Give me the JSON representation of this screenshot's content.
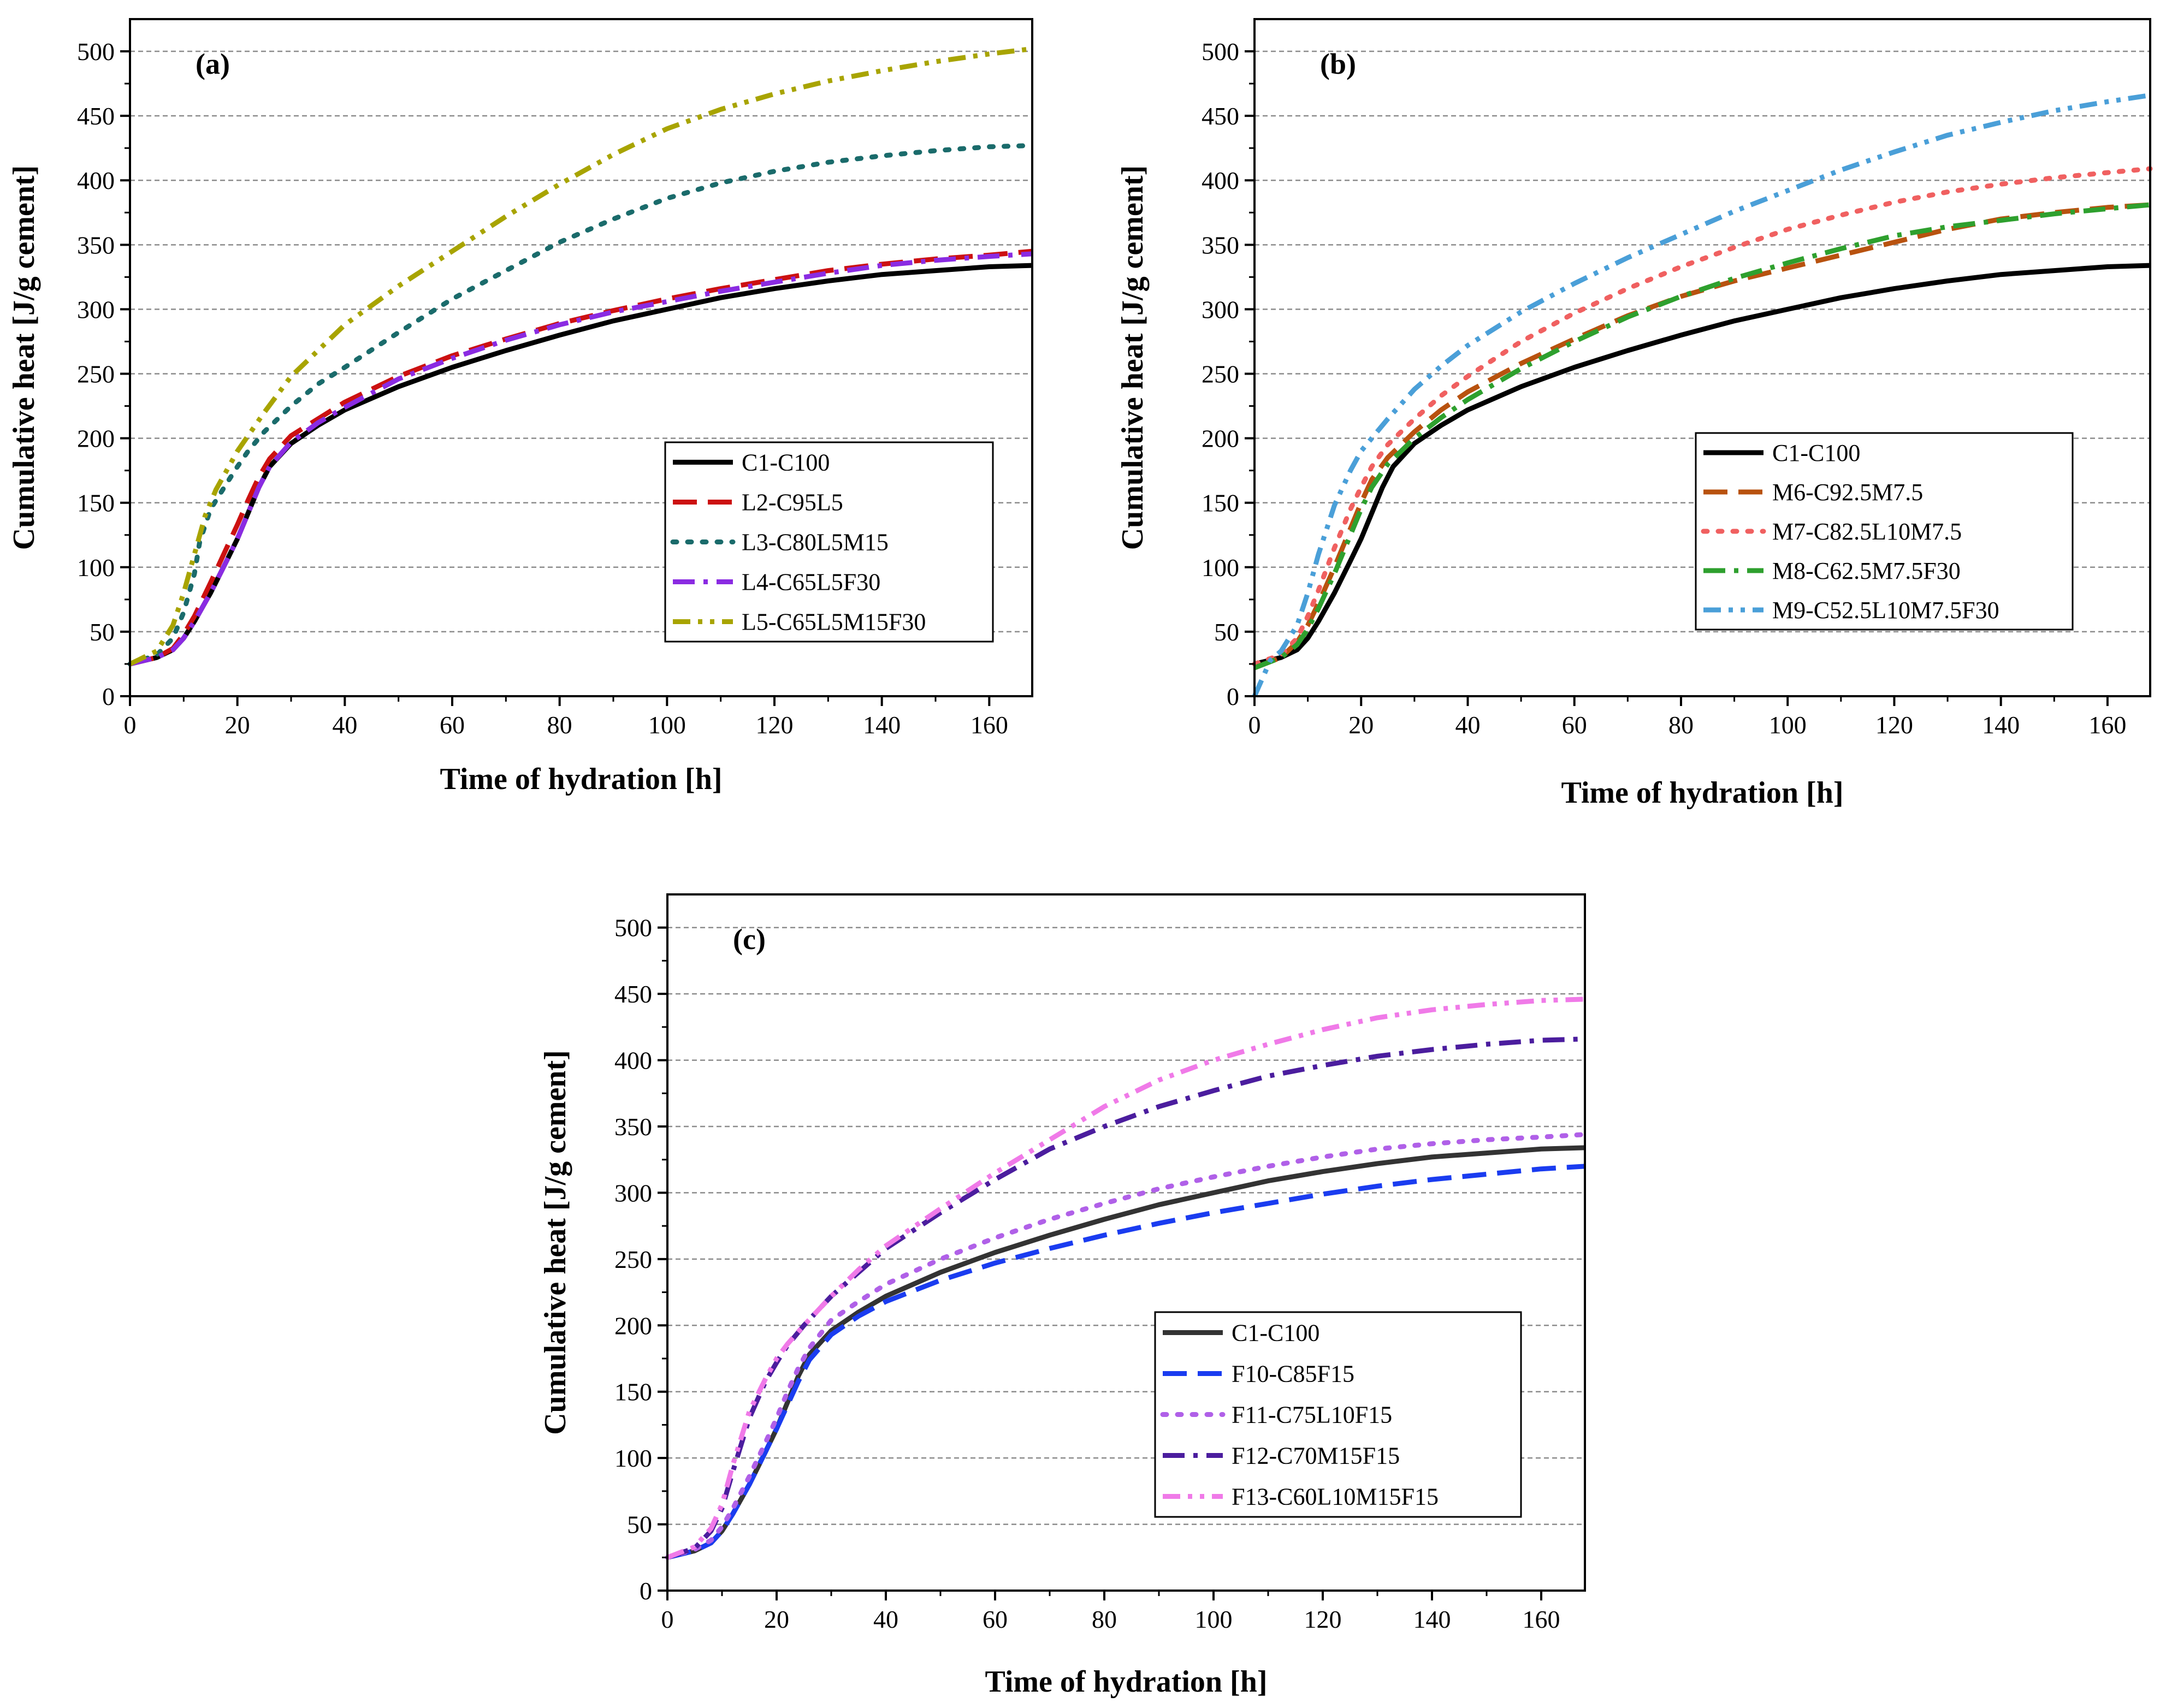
{
  "chart_data": [
    {
      "type": "line",
      "panel_label": "(a)",
      "xlabel": "Time of hydration [h]",
      "ylabel": "Cumulative heat [J/g cement]",
      "xlim": [
        0,
        168
      ],
      "ylim": [
        0,
        525
      ],
      "xticks": [
        0,
        20,
        40,
        60,
        80,
        100,
        120,
        140,
        160
      ],
      "yticks": [
        0,
        50,
        100,
        150,
        200,
        250,
        300,
        350,
        400,
        450,
        500
      ],
      "grid": "horizontal-dashed",
      "legend_position": "lower-right",
      "series": [
        {
          "name": "C1-C100",
          "color": "#000000",
          "dash": "solid",
          "x": [
            0,
            5,
            8,
            10,
            12,
            15,
            18,
            20,
            22,
            24,
            26,
            30,
            35,
            40,
            50,
            60,
            70,
            80,
            90,
            100,
            110,
            120,
            130,
            140,
            150,
            160,
            168
          ],
          "y": [
            25,
            30,
            36,
            45,
            58,
            80,
            105,
            122,
            142,
            162,
            178,
            196,
            210,
            222,
            240,
            255,
            268,
            280,
            291,
            300,
            309,
            316,
            322,
            327,
            330,
            333,
            334
          ]
        },
        {
          "name": "L2-C95L5",
          "color": "#cc1111",
          "dash": "dash",
          "x": [
            0,
            5,
            8,
            10,
            12,
            15,
            18,
            20,
            22,
            24,
            26,
            30,
            35,
            40,
            50,
            60,
            70,
            80,
            90,
            100,
            110,
            120,
            130,
            140,
            150,
            160,
            168
          ],
          "y": [
            25,
            30,
            37,
            48,
            62,
            88,
            115,
            133,
            152,
            170,
            184,
            202,
            215,
            228,
            248,
            264,
            277,
            289,
            299,
            308,
            316,
            323,
            330,
            335,
            339,
            342,
            345
          ]
        },
        {
          "name": "L3-C80L5M15",
          "color": "#1a6b6b",
          "dash": "dot",
          "x": [
            0,
            5,
            8,
            10,
            12,
            13,
            15,
            18,
            20,
            22,
            25,
            30,
            35,
            40,
            50,
            60,
            70,
            80,
            90,
            100,
            110,
            120,
            130,
            140,
            150,
            160,
            168
          ],
          "y": [
            25,
            32,
            45,
            65,
            95,
            120,
            145,
            165,
            178,
            190,
            205,
            225,
            242,
            255,
            282,
            308,
            330,
            352,
            370,
            386,
            398,
            407,
            414,
            419,
            423,
            426,
            427
          ]
        },
        {
          "name": "L4-C65L5F30",
          "color": "#8a2be2",
          "dash": "dashdot",
          "x": [
            0,
            5,
            8,
            10,
            12,
            15,
            18,
            20,
            22,
            24,
            26,
            30,
            35,
            40,
            50,
            60,
            70,
            80,
            90,
            100,
            110,
            120,
            130,
            140,
            150,
            160,
            168
          ],
          "y": [
            25,
            30,
            36,
            45,
            58,
            80,
            105,
            122,
            142,
            162,
            178,
            197,
            212,
            224,
            246,
            262,
            276,
            288,
            298,
            306,
            314,
            321,
            328,
            334,
            338,
            341,
            343
          ]
        },
        {
          "name": "L5-C65L5M15F30",
          "color": "#a8a400",
          "dash": "dashdotdot",
          "x": [
            0,
            5,
            8,
            10,
            12,
            14,
            16,
            18,
            20,
            25,
            30,
            35,
            40,
            50,
            60,
            70,
            80,
            90,
            100,
            110,
            120,
            130,
            140,
            150,
            160,
            168
          ],
          "y": [
            25,
            35,
            55,
            80,
            110,
            140,
            160,
            175,
            190,
            220,
            248,
            268,
            288,
            318,
            345,
            372,
            397,
            420,
            440,
            455,
            467,
            477,
            485,
            492,
            498,
            502
          ]
        }
      ]
    },
    {
      "type": "line",
      "panel_label": "(b)",
      "xlabel": "Time of hydration [h]",
      "ylabel": "Cumulative heat [J/g cement]",
      "xlim": [
        0,
        168
      ],
      "ylim": [
        0,
        525
      ],
      "xticks": [
        0,
        20,
        40,
        60,
        80,
        100,
        120,
        140,
        160
      ],
      "yticks": [
        0,
        50,
        100,
        150,
        200,
        250,
        300,
        350,
        400,
        450,
        500
      ],
      "grid": "horizontal-dashed",
      "legend_position": "center-right",
      "series": [
        {
          "name": "C1-C100",
          "color": "#000000",
          "dash": "solid",
          "x": [
            0,
            5,
            8,
            10,
            12,
            15,
            18,
            20,
            22,
            24,
            26,
            30,
            35,
            40,
            50,
            60,
            70,
            80,
            90,
            100,
            110,
            120,
            130,
            140,
            150,
            160,
            168
          ],
          "y": [
            25,
            30,
            36,
            45,
            58,
            80,
            105,
            122,
            142,
            162,
            178,
            196,
            210,
            222,
            240,
            255,
            268,
            280,
            291,
            300,
            309,
            316,
            322,
            327,
            330,
            333,
            334
          ]
        },
        {
          "name": "M6-C92.5M7.5",
          "color": "#b8520f",
          "dash": "dash",
          "x": [
            0,
            5,
            8,
            10,
            12,
            15,
            18,
            20,
            22,
            25,
            30,
            35,
            40,
            50,
            60,
            70,
            80,
            90,
            100,
            110,
            120,
            130,
            140,
            150,
            160,
            168
          ],
          "y": [
            22,
            30,
            42,
            55,
            72,
            100,
            130,
            150,
            168,
            185,
            205,
            222,
            236,
            258,
            277,
            295,
            310,
            322,
            332,
            342,
            352,
            362,
            370,
            375,
            379,
            381
          ]
        },
        {
          "name": "M7-C82.5L10M7.5",
          "color": "#f06060",
          "dash": "dot",
          "x": [
            0,
            5,
            8,
            10,
            12,
            15,
            18,
            20,
            22,
            25,
            30,
            35,
            40,
            50,
            60,
            70,
            80,
            90,
            100,
            110,
            120,
            130,
            140,
            150,
            160,
            168
          ],
          "y": [
            25,
            32,
            45,
            62,
            82,
            115,
            145,
            162,
            178,
            195,
            215,
            233,
            248,
            275,
            297,
            316,
            333,
            348,
            362,
            373,
            383,
            391,
            397,
            402,
            406,
            409
          ]
        },
        {
          "name": "M8-C62.5M7.5F30",
          "color": "#2ea02e",
          "dash": "dashdot",
          "x": [
            0,
            5,
            8,
            10,
            12,
            15,
            18,
            20,
            22,
            25,
            30,
            35,
            40,
            50,
            60,
            70,
            80,
            90,
            100,
            110,
            120,
            130,
            140,
            150,
            160,
            168
          ],
          "y": [
            22,
            30,
            40,
            52,
            68,
            95,
            125,
            145,
            162,
            180,
            200,
            216,
            230,
            254,
            275,
            294,
            310,
            324,
            336,
            347,
            357,
            364,
            369,
            374,
            378,
            381
          ]
        },
        {
          "name": "M9-C52.5L10M7.5F30",
          "color": "#4a9fd8",
          "dash": "dashdotdot",
          "x": [
            0,
            3,
            5,
            8,
            10,
            12,
            15,
            18,
            20,
            25,
            30,
            35,
            40,
            50,
            60,
            70,
            80,
            90,
            100,
            110,
            120,
            130,
            140,
            150,
            160,
            168
          ],
          "y": [
            0,
            28,
            35,
            55,
            80,
            110,
            148,
            175,
            190,
            215,
            238,
            256,
            272,
            298,
            320,
            340,
            358,
            376,
            392,
            408,
            422,
            435,
            445,
            454,
            461,
            466
          ]
        }
      ]
    },
    {
      "type": "line",
      "panel_label": "(c)",
      "xlabel": "Time of hydration [h]",
      "ylabel": "Cumulative heat [J/g cement]",
      "xlim": [
        0,
        168
      ],
      "ylim": [
        0,
        525
      ],
      "xticks": [
        0,
        20,
        40,
        60,
        80,
        100,
        120,
        140,
        160
      ],
      "yticks": [
        0,
        50,
        100,
        150,
        200,
        250,
        300,
        350,
        400,
        450,
        500
      ],
      "grid": "horizontal-dashed",
      "legend_position": "lower-right",
      "series": [
        {
          "name": "C1-C100",
          "color": "#333333",
          "dash": "solid",
          "x": [
            0,
            5,
            8,
            10,
            12,
            15,
            18,
            20,
            22,
            24,
            26,
            30,
            35,
            40,
            50,
            60,
            70,
            80,
            90,
            100,
            110,
            120,
            130,
            140,
            150,
            160,
            168
          ],
          "y": [
            25,
            30,
            36,
            45,
            58,
            80,
            105,
            122,
            142,
            162,
            178,
            196,
            210,
            222,
            240,
            255,
            268,
            280,
            291,
            300,
            309,
            316,
            322,
            327,
            330,
            333,
            334
          ]
        },
        {
          "name": "F10-C85F15",
          "color": "#1a3cf0",
          "dash": "dash",
          "x": [
            0,
            5,
            8,
            10,
            12,
            15,
            18,
            20,
            22,
            24,
            26,
            30,
            35,
            40,
            50,
            60,
            70,
            80,
            90,
            100,
            110,
            120,
            130,
            140,
            150,
            160,
            168
          ],
          "y": [
            25,
            30,
            36,
            45,
            58,
            80,
            105,
            122,
            140,
            158,
            174,
            193,
            207,
            218,
            234,
            247,
            258,
            268,
            277,
            285,
            292,
            299,
            305,
            310,
            314,
            318,
            320
          ]
        },
        {
          "name": "F11-C75L10F15",
          "color": "#b060e8",
          "dash": "dot",
          "x": [
            0,
            5,
            8,
            10,
            12,
            15,
            18,
            20,
            22,
            24,
            26,
            30,
            35,
            40,
            50,
            60,
            70,
            80,
            90,
            100,
            110,
            120,
            130,
            140,
            150,
            160,
            168
          ],
          "y": [
            25,
            31,
            38,
            48,
            62,
            86,
            112,
            130,
            150,
            168,
            183,
            204,
            218,
            231,
            250,
            266,
            280,
            292,
            303,
            312,
            320,
            327,
            333,
            337,
            340,
            342,
            344
          ]
        },
        {
          "name": "F12-C70M15F15",
          "color": "#4b1d9e",
          "dash": "dashdot",
          "x": [
            0,
            5,
            8,
            10,
            12,
            15,
            18,
            20,
            22,
            25,
            30,
            35,
            40,
            50,
            60,
            70,
            80,
            90,
            100,
            110,
            120,
            130,
            140,
            150,
            160,
            168
          ],
          "y": [
            25,
            32,
            45,
            62,
            90,
            130,
            158,
            172,
            185,
            200,
            222,
            240,
            258,
            285,
            310,
            333,
            350,
            365,
            377,
            388,
            396,
            403,
            408,
            412,
            415,
            416
          ]
        },
        {
          "name": "F13-C60L10M15F15",
          "color": "#f07ae8",
          "dash": "dashdotdot",
          "x": [
            0,
            5,
            8,
            10,
            12,
            15,
            18,
            20,
            22,
            25,
            30,
            35,
            40,
            50,
            60,
            70,
            80,
            90,
            100,
            110,
            120,
            130,
            140,
            150,
            160,
            168
          ],
          "y": [
            25,
            33,
            47,
            65,
            95,
            135,
            160,
            175,
            186,
            200,
            222,
            242,
            260,
            288,
            315,
            340,
            365,
            385,
            400,
            412,
            423,
            432,
            438,
            442,
            445,
            446
          ]
        }
      ]
    }
  ]
}
